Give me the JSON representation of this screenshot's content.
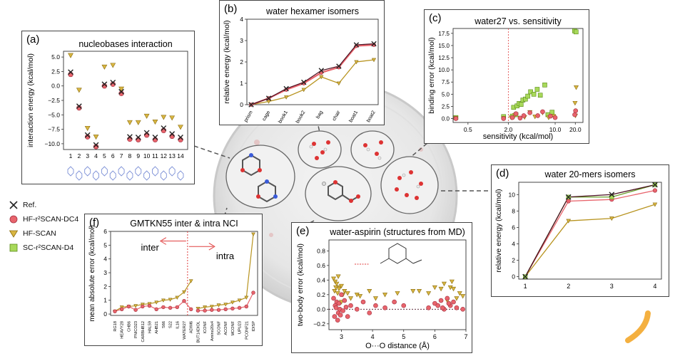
{
  "legend": {
    "items": [
      {
        "key": "ref",
        "label": "Ref."
      },
      {
        "key": "dc4",
        "label": "HF-r²SCAN-DC4"
      },
      {
        "key": "hfscan",
        "label": "HF-SCAN"
      },
      {
        "key": "scd4",
        "label": "SC-r²SCAN-D4"
      }
    ]
  },
  "colors": {
    "ref": "#222222",
    "dc4": "#e8646c",
    "hfscan": "#d9b642",
    "hfscan_line": "#b89420",
    "scd4": "#a8d95a",
    "ref_line": "#4a1020",
    "highlight": "#e04040"
  },
  "chart_data": [
    {
      "id": "a",
      "panel_label": "(a)",
      "type": "scatter",
      "title": "nucleobases interaction",
      "ylabel": "interaction energy (kcal/mol)",
      "xlabel": "",
      "x": [
        1,
        2,
        3,
        4,
        5,
        6,
        7,
        8,
        9,
        10,
        11,
        12,
        13,
        14
      ],
      "ylim": [
        -11,
        6
      ],
      "yticks": [
        5.0,
        2.5,
        0.0,
        -2.5,
        -5.0,
        -7.5,
        -10.0
      ],
      "yticklabels": [
        "5.0",
        "2.5",
        "0.0",
        "−2.5",
        "−5.0",
        "−7.5",
        "−10.0"
      ],
      "series": [
        {
          "key": "hfscan",
          "values": [
            5.3,
            -0.7,
            -7.3,
            -8.8,
            3.3,
            3.6,
            -0.5,
            -6.3,
            -6.3,
            -5.2,
            -6.2,
            -5.4,
            -5.5,
            -7.1
          ]
        },
        {
          "key": "dc4",
          "values": [
            2.0,
            -3.8,
            -8.8,
            -10.5,
            0.0,
            0.3,
            -1.3,
            -9.2,
            -9.3,
            -8.5,
            -9.3,
            -7.7,
            -8.7,
            -9.3
          ]
        },
        {
          "key": "ref",
          "values": [
            2.4,
            -3.5,
            -8.5,
            -10.2,
            0.3,
            0.6,
            -1.0,
            -8.8,
            -8.9,
            -8.1,
            -8.9,
            -7.3,
            -8.3,
            -8.9
          ]
        }
      ]
    },
    {
      "id": "b",
      "panel_label": "(b)",
      "type": "line",
      "title": "water hexamer isomers",
      "ylabel": "relative energy (kcal/mol)",
      "xlabel": "",
      "categories": [
        "prism",
        "cage",
        "book1",
        "book2",
        "bag",
        "chair",
        "boat1",
        "boat2"
      ],
      "ylim": [
        0,
        4
      ],
      "yticks": [
        0,
        1,
        2,
        3,
        4
      ],
      "yticklabels": [
        "0",
        "1",
        "2",
        "3",
        "4"
      ],
      "series": [
        {
          "key": "hfscan",
          "values": [
            0.0,
            0.15,
            0.35,
            0.7,
            1.3,
            1.0,
            2.0,
            2.1
          ]
        },
        {
          "key": "dc4",
          "values": [
            0.0,
            0.3,
            0.7,
            1.0,
            1.5,
            1.75,
            2.75,
            2.8
          ]
        },
        {
          "key": "ref",
          "values": [
            0.0,
            0.3,
            0.75,
            1.05,
            1.6,
            1.8,
            2.8,
            2.85
          ]
        }
      ]
    },
    {
      "id": "c",
      "panel_label": "(c)",
      "type": "scatter",
      "title": "water27 vs. sensitivity",
      "ylabel": "binding error (kcal/mol)",
      "xlabel": "sensitivity (kcal/mol)",
      "xscale": "log",
      "xlim": [
        0.3,
        26
      ],
      "xticks": [
        0.5,
        2.0,
        10.0,
        20.0
      ],
      "xticklabels": [
        "0.5",
        "2.0",
        "10.0",
        "20.0"
      ],
      "ylim": [
        -0.8,
        18.5
      ],
      "yticks": [
        0,
        2.5,
        5,
        7.5,
        10,
        12.5,
        15,
        17.5
      ],
      "yticklabels": [
        "0.0",
        "2.5",
        "5.0",
        "7.5",
        "10.0",
        "12.5",
        "15.0",
        "17.5"
      ],
      "vline": 2.0,
      "series": [
        {
          "key": "scd4",
          "points": [
            [
              0.33,
              0.2
            ],
            [
              1.7,
              0.4
            ],
            [
              2.3,
              0.5
            ],
            [
              2.4,
              2.3
            ],
            [
              2.6,
              0.8
            ],
            [
              2.7,
              2.6
            ],
            [
              2.9,
              3.1
            ],
            [
              3.1,
              2.9
            ],
            [
              3.3,
              3.8
            ],
            [
              3.6,
              4.0
            ],
            [
              3.9,
              4.6
            ],
            [
              4.3,
              5.5
            ],
            [
              4.8,
              5.0
            ],
            [
              5.4,
              6.0
            ],
            [
              6.0,
              4.8
            ],
            [
              7.0,
              6.9
            ],
            [
              7.8,
              0.8
            ],
            [
              9.0,
              1.3
            ],
            [
              19.5,
              18.0
            ],
            [
              20.5,
              17.8
            ]
          ]
        },
        {
          "key": "hfscan",
          "points": [
            [
              0.33,
              0.1
            ],
            [
              1.7,
              0.1
            ],
            [
              2.2,
              0.2
            ],
            [
              2.5,
              0.7
            ],
            [
              3.0,
              0.1
            ],
            [
              3.5,
              0.3
            ],
            [
              4.2,
              1.3
            ],
            [
              5.0,
              0.4
            ],
            [
              6.5,
              1.2
            ],
            [
              8.0,
              0.2
            ],
            [
              9.5,
              0.5
            ],
            [
              19.8,
              3.2
            ],
            [
              20.6,
              6.4
            ],
            [
              20.1,
              0.6
            ]
          ]
        },
        {
          "key": "dc4",
          "points": [
            [
              0.33,
              0.0
            ],
            [
              1.7,
              0.0
            ],
            [
              2.3,
              0.2
            ],
            [
              2.6,
              1.0
            ],
            [
              3.0,
              0.1
            ],
            [
              3.4,
              0.6
            ],
            [
              4.2,
              1.2
            ],
            [
              5.5,
              0.6
            ],
            [
              6.5,
              1.4
            ],
            [
              8.5,
              0.5
            ],
            [
              10.0,
              0.2
            ],
            [
              19.6,
              0.8
            ],
            [
              20.2,
              1.6
            ]
          ]
        }
      ]
    },
    {
      "id": "d",
      "panel_label": "(d)",
      "type": "line",
      "title": "water 20-mers isomers",
      "ylabel": "relative energy (kcal/mol)",
      "xlabel": "",
      "x": [
        1,
        2,
        3,
        4
      ],
      "xlim": [
        0.85,
        4.15
      ],
      "ylim": [
        -0.3,
        11.5
      ],
      "yticks": [
        0,
        2,
        4,
        6,
        8,
        10
      ],
      "yticklabels": [
        "0",
        "2",
        "4",
        "6",
        "8",
        "10"
      ],
      "series": [
        {
          "key": "hfscan",
          "values": [
            0.0,
            6.8,
            7.1,
            8.8
          ]
        },
        {
          "key": "dc4",
          "values": [
            0.0,
            9.2,
            9.4,
            10.5
          ]
        },
        {
          "key": "scd4",
          "values": [
            0.0,
            9.7,
            9.7,
            11.2
          ]
        },
        {
          "key": "ref",
          "values": [
            0.0,
            9.7,
            10.0,
            11.2
          ]
        }
      ]
    },
    {
      "id": "e",
      "panel_label": "(e)",
      "type": "scatter",
      "title": "water-aspirin (structures from MD)",
      "ylabel": "two-body error (kcal/mol)",
      "xlabel": "O···O distance (Å)",
      "xlim": [
        2.6,
        7.0
      ],
      "xticks": [
        3,
        4,
        5,
        6,
        7
      ],
      "xticklabels": [
        "3",
        "4",
        "5",
        "6",
        "7"
      ],
      "ylim": [
        -0.28,
        0.95
      ],
      "yticks": [
        -0.2,
        0.0,
        0.2,
        0.4,
        0.6,
        0.8
      ],
      "yticklabels": [
        "−0.2",
        "0.0",
        "0.2",
        "0.4",
        "0.6",
        "0.8"
      ],
      "hline": 0.0,
      "series": [
        {
          "key": "hfscan",
          "points": [
            [
              2.75,
              0.42
            ],
            [
              2.8,
              0.38
            ],
            [
              2.85,
              0.35
            ],
            [
              2.9,
              0.45
            ],
            [
              2.95,
              0.3
            ],
            [
              3.0,
              0.32
            ],
            [
              2.78,
              0.25
            ],
            [
              2.88,
              0.22
            ],
            [
              2.92,
              0.28
            ],
            [
              3.05,
              0.2
            ],
            [
              3.1,
              0.25
            ],
            [
              3.2,
              0.22
            ],
            [
              3.3,
              0.15
            ],
            [
              3.5,
              0.2
            ],
            [
              3.6,
              0.18
            ],
            [
              3.9,
              0.25
            ],
            [
              4.1,
              0.15
            ],
            [
              4.4,
              0.2
            ],
            [
              4.8,
              0.22
            ],
            [
              5.3,
              0.25
            ],
            [
              5.5,
              0.25
            ],
            [
              5.8,
              0.22
            ],
            [
              6.0,
              0.3
            ],
            [
              6.2,
              0.28
            ],
            [
              6.3,
              0.35
            ],
            [
              6.5,
              0.3
            ],
            [
              6.6,
              0.28
            ],
            [
              6.8,
              0.22
            ],
            [
              6.9,
              0.18
            ],
            [
              6.4,
              0.12
            ],
            [
              2.82,
              0.3
            ],
            [
              3.0,
              0.1
            ],
            [
              6.55,
              0.38
            ],
            [
              6.7,
              0.15
            ]
          ]
        },
        {
          "key": "dc4",
          "points": [
            [
              2.75,
              0.15
            ],
            [
              2.8,
              0.05
            ],
            [
              2.85,
              0.1
            ],
            [
              2.9,
              -0.05
            ],
            [
              2.95,
              0.0
            ],
            [
              3.0,
              0.2
            ],
            [
              2.78,
              -0.1
            ],
            [
              2.88,
              -0.15
            ],
            [
              2.92,
              0.08
            ],
            [
              3.05,
              -0.02
            ],
            [
              3.1,
              0.12
            ],
            [
              3.2,
              -0.1
            ],
            [
              3.3,
              0.05
            ],
            [
              3.5,
              0.0
            ],
            [
              3.7,
              0.1
            ],
            [
              3.9,
              -0.05
            ],
            [
              4.1,
              0.05
            ],
            [
              4.4,
              0.02
            ],
            [
              4.7,
              0.1
            ],
            [
              5.0,
              0.05
            ],
            [
              5.8,
              0.02
            ],
            [
              6.0,
              0.08
            ],
            [
              6.1,
              0.05
            ],
            [
              6.2,
              0.12
            ],
            [
              6.3,
              0.0
            ],
            [
              6.4,
              0.15
            ],
            [
              6.5,
              0.05
            ],
            [
              6.6,
              0.1
            ],
            [
              6.7,
              0.02
            ],
            [
              6.9,
              0.0
            ],
            [
              2.83,
              0.02
            ],
            [
              2.97,
              -0.08
            ],
            [
              3.15,
              0.03
            ],
            [
              6.25,
              0.02
            ],
            [
              6.45,
              0.08
            ]
          ]
        }
      ]
    },
    {
      "id": "f",
      "panel_label": "(f)",
      "type": "line",
      "title": "GMTKN55 inter & intra NCI",
      "ylabel": "mean absolute error (kcal/mol)",
      "xlabel": "",
      "categories": [
        "RG18",
        "HEAVY28",
        "CHB6",
        "PNICO23",
        "CARBHB12",
        "HAL59",
        "AHB21",
        "S66",
        "S22",
        "IL16",
        "WATER27",
        "ADIM6",
        "BUT14DIOL",
        "ICONF",
        "Amino20x4",
        "SCONF",
        "ACONF",
        "MCONF",
        "UPU23",
        "PCONF21",
        "IDISP"
      ],
      "ylim": [
        -0.1,
        6
      ],
      "yticks": [
        0,
        1,
        2,
        3,
        4,
        5,
        6
      ],
      "yticklabels": [
        "0",
        "1",
        "2",
        "3",
        "4",
        "5",
        "6"
      ],
      "divider_after": 11,
      "arrow_labels": {
        "inter": "inter",
        "intra": "intra"
      },
      "series": [
        {
          "key": "hfscan",
          "values": [
            0.2,
            0.5,
            0.55,
            0.6,
            0.7,
            0.75,
            0.85,
            1.0,
            1.05,
            1.2,
            1.6,
            2.4,
            0.4,
            0.5,
            0.55,
            0.65,
            0.7,
            0.85,
            1.0,
            1.2,
            5.8
          ]
        },
        {
          "key": "dc4",
          "values": [
            0.2,
            0.35,
            0.55,
            0.3,
            0.55,
            0.6,
            0.35,
            0.5,
            0.45,
            0.5,
            0.95,
            0.35,
            0.25,
            0.25,
            0.3,
            0.3,
            0.35,
            0.4,
            0.45,
            0.55,
            1.55
          ]
        }
      ]
    }
  ]
}
